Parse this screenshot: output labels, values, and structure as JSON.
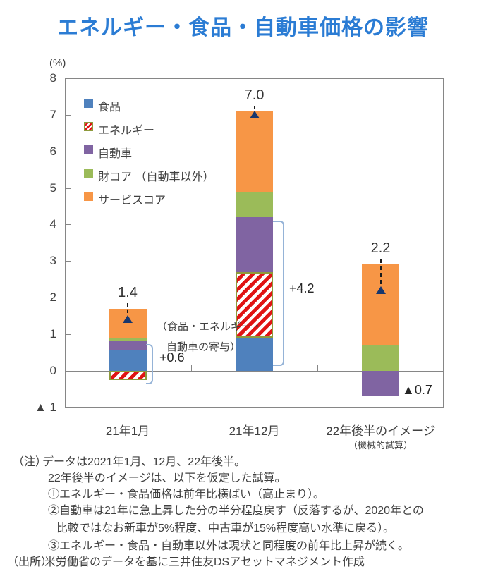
{
  "title": "エネルギー・食品・自動車価格の影響",
  "y_axis": {
    "unit_label": "(%)",
    "ticks": [
      {
        "label": "8",
        "value": 8
      },
      {
        "label": "7",
        "value": 7
      },
      {
        "label": "6",
        "value": 6
      },
      {
        "label": "5",
        "value": 5
      },
      {
        "label": "4",
        "value": 4
      },
      {
        "label": "3",
        "value": 3
      },
      {
        "label": "2",
        "value": 2
      },
      {
        "label": "1",
        "value": 1
      },
      {
        "label": "0",
        "value": 0
      },
      {
        "label": "▲ 1",
        "value": -1
      }
    ]
  },
  "x_axis": {
    "categories": [
      {
        "label": "21年1月",
        "sublabel": ""
      },
      {
        "label": "21年12月",
        "sublabel": ""
      },
      {
        "label": "22年後半のイメージ",
        "sublabel": "（機械的試算）"
      }
    ]
  },
  "chart_data": {
    "type": "bar",
    "stacked": true,
    "title": "エネルギー・食品・自動車価格の影響",
    "ylabel": "(%)",
    "ylim": [
      -1,
      8
    ],
    "grid": false,
    "legend_position": "upper-left-inside",
    "categories": [
      "21年1月",
      "21年12月",
      "22年後半のイメージ（機械的試算）"
    ],
    "series": [
      {
        "name": "食品",
        "key": "food",
        "values": [
          0.55,
          0.9,
          0.0
        ]
      },
      {
        "name": "エネルギー",
        "key": "energy",
        "values": [
          -0.25,
          1.8,
          0.0
        ]
      },
      {
        "name": "自動車",
        "key": "auto",
        "values": [
          0.25,
          1.5,
          -0.7
        ]
      },
      {
        "name": "財コア （自動車以外）",
        "key": "goods_core",
        "values": [
          0.1,
          0.7,
          0.7
        ]
      },
      {
        "name": "サービスコア",
        "key": "services_core",
        "values": [
          0.8,
          2.2,
          2.2
        ]
      }
    ],
    "totals": {
      "values": [
        1.4,
        7.0,
        2.2
      ],
      "labels": [
        "1.4",
        "7.0",
        "2.2"
      ]
    },
    "annotations": [
      "（食品・エネルギー・自動車の寄与）+0.6",
      "+4.2",
      "▲0.7"
    ]
  },
  "annotations": {
    "bar1_contribution": {
      "line1": "（食品・エネルギー・",
      "line2": "自動車の寄与）",
      "value": "+0.6"
    },
    "bar2_contribution": {
      "value": "+4.2"
    },
    "bar3_auto": {
      "value": "▲0.7"
    }
  },
  "notes": {
    "lines": [
      {
        "label": "（注）",
        "text": "データは2021年1月、12月、22年後半。"
      },
      {
        "label": "",
        "text": "22年後半のイメージは、以下を仮定した試算。"
      },
      {
        "label": "",
        "text": "①エネルギー・食品価格は前年比横ばい（高止まり）。"
      },
      {
        "label": "",
        "text": "②自動車は21年に急上昇した分の半分程度戻す（反落するが、2020年との"
      },
      {
        "label": "",
        "text": "比較ではなお新車が5%程度、中古車が15%程度高い水準に戻る）。"
      },
      {
        "label": "",
        "text": "③エネルギー・食品・自動車以外は現状と同程度の前年比上昇が続く。"
      },
      {
        "label": "（出所）",
        "text": "米労働省のデータを基に三井住友DSアセットマネジメント作成"
      }
    ]
  },
  "colors": {
    "title": "#2b7cd4",
    "food": "#4f81bd",
    "energy_stripe": "#e01414",
    "energy_border": "#8e9a3c",
    "auto": "#8064a2",
    "goods_core": "#9bbb59",
    "services_core": "#f79646",
    "marker": "#17376e",
    "bracket": "#95b3d7",
    "axis": "#868686",
    "text": "#404040"
  }
}
